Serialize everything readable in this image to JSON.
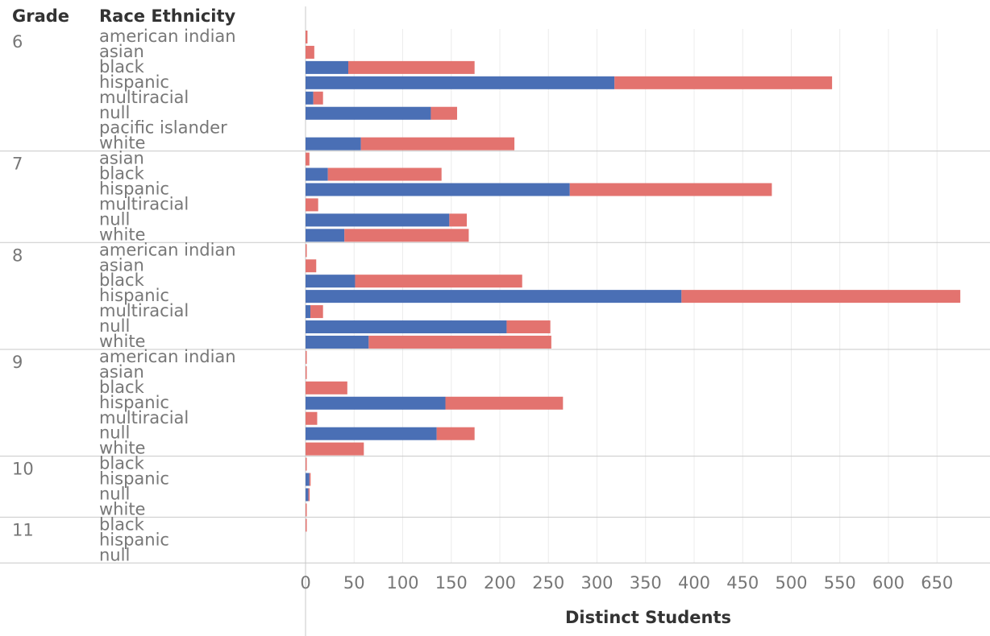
{
  "headers": {
    "grade": "Grade",
    "race": "Race Ethnicity"
  },
  "colors": {
    "series_a": "#4a6fb5",
    "series_b": "#e3736f"
  },
  "chart_data": {
    "type": "bar",
    "orientation": "horizontal",
    "stacked": true,
    "xlabel": "Distinct Students",
    "xlim": [
      0,
      700
    ],
    "xticks": [
      0,
      50,
      100,
      150,
      200,
      250,
      300,
      350,
      400,
      450,
      500,
      550,
      600,
      650
    ],
    "grid": true,
    "series_colors": [
      "#4a6fb5",
      "#e3736f"
    ],
    "groups": [
      {
        "grade": "6",
        "rows": [
          {
            "race": "american indian",
            "values": [
              0,
              2
            ]
          },
          {
            "race": "asian",
            "values": [
              0,
              9
            ]
          },
          {
            "race": "black",
            "values": [
              44,
              130
            ]
          },
          {
            "race": "hispanic",
            "values": [
              318,
              224
            ]
          },
          {
            "race": "multiracial",
            "values": [
              8,
              10
            ]
          },
          {
            "race": "null",
            "values": [
              129,
              27
            ]
          },
          {
            "race": "pacific islander",
            "values": [
              0,
              0
            ]
          },
          {
            "race": "white",
            "values": [
              57,
              158
            ]
          }
        ]
      },
      {
        "grade": "7",
        "rows": [
          {
            "race": "asian",
            "values": [
              0,
              4
            ]
          },
          {
            "race": "black",
            "values": [
              23,
              117
            ]
          },
          {
            "race": "hispanic",
            "values": [
              272,
              208
            ]
          },
          {
            "race": "multiracial",
            "values": [
              0,
              13
            ]
          },
          {
            "race": "null",
            "values": [
              148,
              18
            ]
          },
          {
            "race": "white",
            "values": [
              40,
              128
            ]
          }
        ]
      },
      {
        "grade": "8",
        "rows": [
          {
            "race": "american indian",
            "values": [
              0,
              1
            ]
          },
          {
            "race": "asian",
            "values": [
              0,
              11
            ]
          },
          {
            "race": "black",
            "values": [
              51,
              172
            ]
          },
          {
            "race": "hispanic",
            "values": [
              387,
              287
            ]
          },
          {
            "race": "multiracial",
            "values": [
              5,
              13
            ]
          },
          {
            "race": "null",
            "values": [
              207,
              45
            ]
          },
          {
            "race": "white",
            "values": [
              65,
              188
            ]
          }
        ]
      },
      {
        "grade": "9",
        "rows": [
          {
            "race": "american indian",
            "values": [
              0,
              1
            ]
          },
          {
            "race": "asian",
            "values": [
              0,
              1
            ]
          },
          {
            "race": "black",
            "values": [
              0,
              43
            ]
          },
          {
            "race": "hispanic",
            "values": [
              144,
              121
            ]
          },
          {
            "race": "multiracial",
            "values": [
              0,
              12
            ]
          },
          {
            "race": "null",
            "values": [
              135,
              39
            ]
          },
          {
            "race": "white",
            "values": [
              0,
              60
            ]
          }
        ]
      },
      {
        "grade": "10",
        "rows": [
          {
            "race": "black",
            "values": [
              0,
              1
            ]
          },
          {
            "race": "hispanic",
            "values": [
              4,
              1
            ]
          },
          {
            "race": "null",
            "values": [
              3,
              1
            ]
          },
          {
            "race": "white",
            "values": [
              0,
              1
            ]
          }
        ]
      },
      {
        "grade": "11",
        "rows": [
          {
            "race": "black",
            "values": [
              0,
              1
            ]
          },
          {
            "race": "hispanic",
            "values": [
              0,
              0
            ]
          },
          {
            "race": "null",
            "values": [
              0,
              0
            ]
          }
        ]
      }
    ]
  }
}
